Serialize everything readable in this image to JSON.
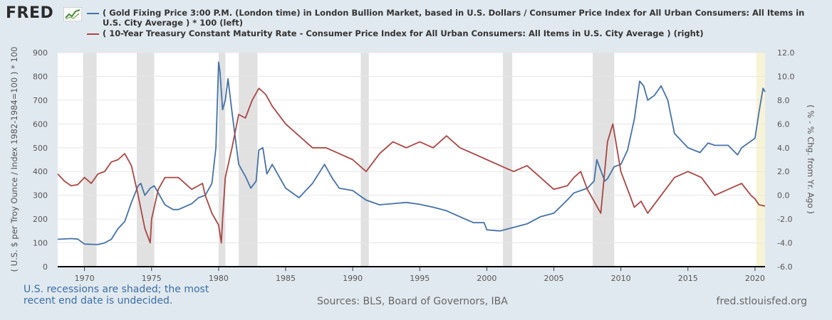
{
  "brand": {
    "logo_text": "FRED",
    "logo_icon": "chart-line-icon"
  },
  "legend": [
    {
      "text": "( Gold Fixing Price 3:00 P.M. (London time) in London Bullion Market, based in U.S. Dollars / Consumer Price Index for All Urban Consumers: All Items in U.S. City Average ) * 100 (left)",
      "color": "#4572a7"
    },
    {
      "text": "( 10-Year Treasury Constant Maturity Rate - Consumer Price Index for All Urban Consumers: All Items in U.S. City Average ) (right)",
      "color": "#aa4643"
    }
  ],
  "footer": {
    "recession_note": "U.S. recessions are shaded; the most recent end date is undecided.",
    "sources": "Sources: BLS, Board of Governors, IBA",
    "site": "fred.stlouisfed.org"
  },
  "chart_data": {
    "type": "line",
    "xlabel": "",
    "ylabel": "( U.S. $ per Troy Ounce / Index 1982-1984=100 ) * 100",
    "y2label": "( % - % Chg. from Yr. Ago )",
    "xlim": [
      1968.0,
      2020.75
    ],
    "ylim": [
      0,
      900
    ],
    "y2lim": [
      -6.0,
      12.0
    ],
    "x_ticks": [
      "1970",
      "1975",
      "1980",
      "1985",
      "1990",
      "1995",
      "2000",
      "2005",
      "2010",
      "2015",
      "2020"
    ],
    "y_ticks": [
      "0",
      "100",
      "200",
      "300",
      "400",
      "500",
      "600",
      "700",
      "800",
      "900"
    ],
    "y2_ticks": [
      "-6.0",
      "-4.0",
      "-2.0",
      "0.0",
      "2.0",
      "4.0",
      "6.0",
      "8.0",
      "10.0",
      "12.0"
    ],
    "grid": true,
    "recessions": [
      [
        1969.9,
        1970.9
      ],
      [
        1973.9,
        1975.2
      ],
      [
        1980.0,
        1980.5
      ],
      [
        1981.5,
        1982.9
      ],
      [
        1990.6,
        1991.2
      ],
      [
        2001.2,
        2001.9
      ],
      [
        2007.9,
        2009.5
      ]
    ],
    "current_recession": [
      2020.1,
      2020.75
    ],
    "series": [
      {
        "name": "Gold Fixing Price 3:00 P.M. (London time) in London Bullion Market, based in U.S. Dollars / Consumer Price Index for All Urban Consumers: All Items in U.S. City Average ) * 100",
        "axis": "left",
        "color": "#4572a7",
        "x": [
          1968.0,
          1969.0,
          1969.5,
          1970.0,
          1971.0,
          1971.5,
          1972.0,
          1972.5,
          1973.0,
          1973.5,
          1974.0,
          1974.2,
          1974.5,
          1974.9,
          1975.2,
          1975.5,
          1976.0,
          1976.6,
          1977.0,
          1978.0,
          1978.5,
          1979.0,
          1979.5,
          1979.8,
          1980.0,
          1980.1,
          1980.3,
          1980.5,
          1980.7,
          1981.0,
          1981.5,
          1982.0,
          1982.4,
          1982.8,
          1983.0,
          1983.3,
          1983.6,
          1984.0,
          1985.0,
          1986.0,
          1987.0,
          1987.9,
          1988.5,
          1989.0,
          1990.0,
          1991.0,
          1992.0,
          1993.0,
          1994.0,
          1995.0,
          1996.0,
          1997.0,
          1998.0,
          1999.0,
          1999.8,
          2000.0,
          2001.0,
          2002.0,
          2003.0,
          2004.0,
          2005.0,
          2006.0,
          2006.5,
          2007.0,
          2007.5,
          2008.0,
          2008.2,
          2008.8,
          2009.0,
          2009.5,
          2010.0,
          2010.5,
          2011.0,
          2011.4,
          2011.7,
          2012.0,
          2012.5,
          2013.0,
          2013.5,
          2014.0,
          2015.0,
          2015.9,
          2016.5,
          2017.0,
          2018.0,
          2018.7,
          2019.0,
          2019.5,
          2020.0,
          2020.3,
          2020.6,
          2020.75
        ],
        "values": [
          115,
          118,
          116,
          95,
          93,
          100,
          115,
          160,
          190,
          270,
          340,
          350,
          300,
          330,
          340,
          310,
          260,
          240,
          240,
          265,
          290,
          300,
          350,
          500,
          860,
          820,
          660,
          700,
          790,
          650,
          430,
          380,
          330,
          360,
          490,
          500,
          390,
          430,
          330,
          290,
          350,
          430,
          370,
          330,
          320,
          280,
          260,
          265,
          270,
          262,
          250,
          235,
          210,
          185,
          185,
          155,
          150,
          165,
          180,
          210,
          225,
          280,
          310,
          320,
          330,
          360,
          450,
          360,
          370,
          420,
          430,
          490,
          620,
          780,
          760,
          700,
          720,
          760,
          700,
          560,
          500,
          480,
          520,
          510,
          510,
          470,
          500,
          520,
          540,
          650,
          750,
          735
        ]
      },
      {
        "name": "10-Year Treasury Constant Maturity Rate - Consumer Price Index for All Urban Consumers: All Items in U.S. City Average",
        "axis": "right",
        "color": "#aa4643",
        "x": [
          1968.0,
          1968.5,
          1969.0,
          1969.5,
          1970.0,
          1970.5,
          1971.0,
          1971.5,
          1972.0,
          1972.5,
          1973.0,
          1973.5,
          1974.0,
          1974.5,
          1974.9,
          1975.0,
          1975.5,
          1976.0,
          1977.0,
          1978.0,
          1978.8,
          1979.0,
          1979.5,
          1980.0,
          1980.2,
          1980.3,
          1980.5,
          1981.0,
          1981.5,
          1982.0,
          1982.5,
          1983.0,
          1983.5,
          1984.0,
          1985.0,
          1986.0,
          1987.0,
          1988.0,
          1989.0,
          1990.0,
          1991.0,
          1992.0,
          1993.0,
          1994.0,
          1995.0,
          1996.0,
          1997.0,
          1998.0,
          1999.0,
          2000.0,
          2001.0,
          2002.0,
          2003.0,
          2004.0,
          2005.0,
          2006.0,
          2006.5,
          2007.0,
          2007.5,
          2008.0,
          2008.5,
          2009.0,
          2009.4,
          2010.0,
          2011.0,
          2011.5,
          2012.0,
          2013.0,
          2014.0,
          2015.0,
          2016.0,
          2017.0,
          2018.0,
          2019.0,
          2019.7,
          2020.0,
          2020.3,
          2020.75
        ],
        "values": [
          1.8,
          1.2,
          0.8,
          0.9,
          1.5,
          1.0,
          1.8,
          2.0,
          2.8,
          3.0,
          3.5,
          2.5,
          0.0,
          -2.8,
          -4.0,
          -2.0,
          0.5,
          1.5,
          1.5,
          0.5,
          1.0,
          0.0,
          -1.5,
          -2.5,
          -4.0,
          -2.0,
          1.5,
          4.0,
          6.8,
          6.5,
          8.0,
          9.0,
          8.5,
          7.5,
          6.0,
          5.0,
          4.0,
          4.0,
          3.5,
          3.0,
          2.0,
          3.5,
          4.5,
          4.0,
          4.5,
          4.0,
          5.0,
          4.0,
          3.5,
          3.0,
          2.5,
          2.0,
          2.5,
          1.5,
          0.5,
          0.8,
          1.5,
          2.0,
          0.5,
          -0.5,
          -1.5,
          4.5,
          6.0,
          2.0,
          -1.0,
          -0.5,
          -1.5,
          0.0,
          1.5,
          2.0,
          1.5,
          0.0,
          0.5,
          1.0,
          0.0,
          -0.3,
          -0.8,
          -0.9
        ]
      }
    ]
  }
}
